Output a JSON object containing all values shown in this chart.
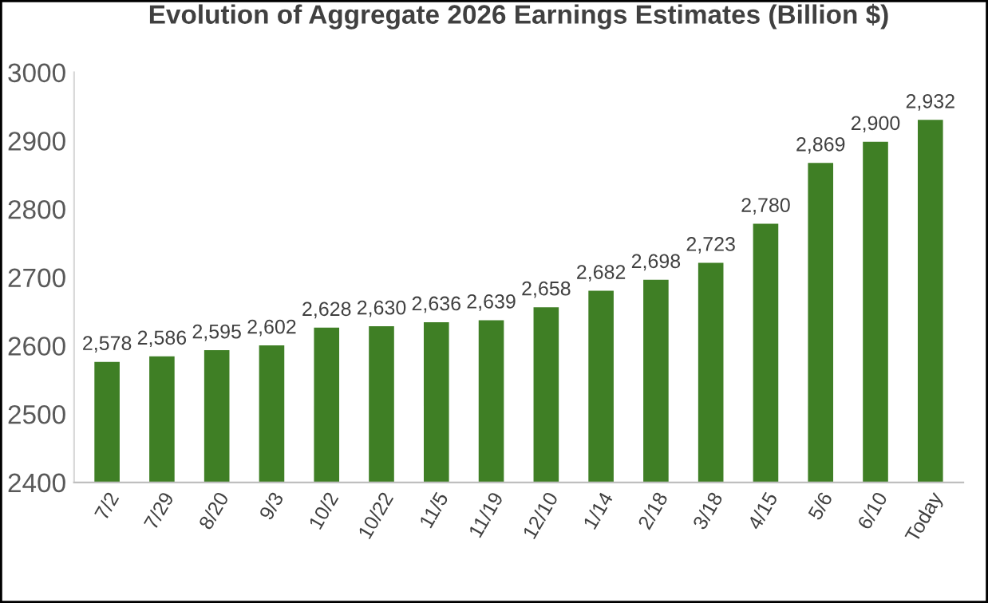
{
  "chart_data": {
    "type": "bar",
    "title": "Evolution of Aggregate 2026 Earnings Estimates (Billion $)",
    "categories": [
      "7/2",
      "7/29",
      "8/20",
      "9/3",
      "10/2",
      "10/22",
      "11/5",
      "11/19",
      "12/10",
      "1/14",
      "2/18",
      "3/18",
      "4/15",
      "5/6",
      "6/10",
      "Today"
    ],
    "values": [
      2578,
      2586,
      2595,
      2602,
      2628,
      2630,
      2636,
      2639,
      2658,
      2682,
      2698,
      2723,
      2780,
      2869,
      2900,
      2932
    ],
    "color": "#3f7f25",
    "ylim": [
      2400,
      3000
    ],
    "yticks": [
      2400,
      2500,
      2600,
      2700,
      2800,
      2900,
      3000
    ],
    "value_labels": [
      "2,578",
      "2,586",
      "2,595",
      "2,602",
      "2,628",
      "2,630",
      "2,636",
      "2,639",
      "2,658",
      "2,682",
      "2,698",
      "2,723",
      "2,780",
      "2,869",
      "2,900",
      "2,932"
    ],
    "grid": false,
    "legend": false
  }
}
